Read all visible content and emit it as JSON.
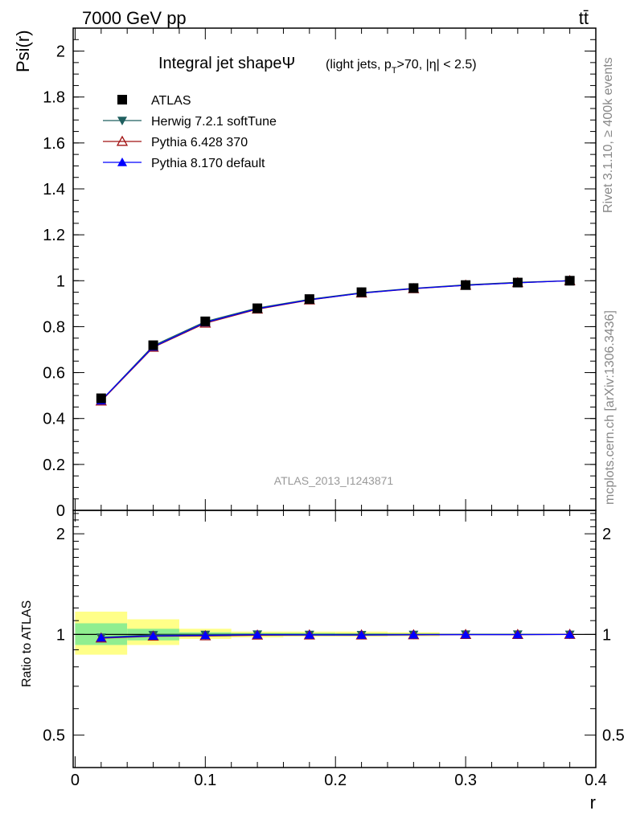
{
  "header": {
    "beam": "7000 GeV pp",
    "process": "tt̄",
    "analysis": "ATLAS_2013_I1243871",
    "side_top": "Rivet 3.1.10, ≥ 400k events",
    "side_bottom": "mcplots.cern.ch [arXiv:1306.3436]"
  },
  "chart_data": [
    {
      "type": "line",
      "title": "Integral jet shapeΨ",
      "subtitle": "(light jets, p_T>70, |η| < 2.5)",
      "ylabel": "Psi(r)",
      "xlabel": "",
      "xlim": [
        -0.0015,
        0.4
      ],
      "ylim": [
        0,
        2.1
      ],
      "yticks": [
        0,
        0.2,
        0.4,
        0.6,
        0.8,
        1,
        1.2,
        1.4,
        1.6,
        1.8,
        2
      ],
      "ytick_labels": [
        "0",
        "0.2",
        "0.4",
        "0.6",
        "0.8",
        "1",
        "1.2",
        "1.4",
        "1.6",
        "1.8",
        "2"
      ],
      "legend_position": "top-left",
      "x": [
        0.02,
        0.06,
        0.1,
        0.14,
        0.18,
        0.22,
        0.26,
        0.3,
        0.34,
        0.38
      ],
      "series": [
        {
          "name": "ATLAS",
          "marker": "square",
          "color": "#000000",
          "values": [
            0.488,
            0.719,
            0.823,
            0.88,
            0.92,
            0.95,
            0.968,
            0.981,
            0.992,
            1.0
          ]
        },
        {
          "name": "Herwig 7.2.1 softTune",
          "marker": "triangle-down",
          "color": "#1f5f5f",
          "values": [
            0.478,
            0.717,
            0.822,
            0.881,
            0.919,
            0.948,
            0.967,
            0.982,
            0.993,
            1.0
          ]
        },
        {
          "name": "Pythia 6.428 370",
          "marker": "triangle-up-open",
          "color": "#a01010",
          "values": [
            0.476,
            0.71,
            0.815,
            0.876,
            0.916,
            0.946,
            0.965,
            0.98,
            0.991,
            1.0
          ]
        },
        {
          "name": "Pythia 8.170 default",
          "marker": "triangle-up",
          "color": "#0000ff",
          "values": [
            0.478,
            0.712,
            0.818,
            0.878,
            0.917,
            0.946,
            0.966,
            0.98,
            0.991,
            1.0
          ]
        }
      ]
    },
    {
      "type": "line",
      "ylabel": "Ratio to ATLAS",
      "xlabel": "r",
      "xlim": [
        -0.0015,
        0.4
      ],
      "ylim": [
        0.4,
        2.35
      ],
      "y_scale": "log",
      "yticks": [
        0.5,
        1,
        2
      ],
      "ytick_labels": [
        "0.5",
        "1",
        "2"
      ],
      "xticks": [
        0,
        0.1,
        0.2,
        0.3,
        0.4
      ],
      "xtick_labels": [
        "0",
        "0.1",
        "0.2",
        "0.3",
        "0.4"
      ],
      "x": [
        0.02,
        0.06,
        0.1,
        0.14,
        0.18,
        0.22,
        0.26,
        0.3,
        0.34,
        0.38
      ],
      "uncertainty_bands": {
        "bin_edges": [
          0,
          0.04,
          0.08,
          0.12,
          0.16,
          0.2,
          0.24,
          0.28,
          0.32,
          0.36,
          0.4
        ],
        "inner_color": "#90ee90",
        "outer_color": "#ffff88",
        "inner_range": [
          [
            0.93,
            1.08
          ],
          [
            0.96,
            1.04
          ],
          [
            0.985,
            1.015
          ],
          [
            0.99,
            1.01
          ],
          [
            0.992,
            1.01
          ],
          [
            0.993,
            1.008
          ],
          [
            0.995,
            1.006
          ],
          [
            0.998,
            1.003
          ],
          [
            0.999,
            1.002
          ],
          [
            1.0,
            1.0
          ]
        ],
        "outer_range": [
          [
            0.87,
            1.17
          ],
          [
            0.93,
            1.11
          ],
          [
            0.97,
            1.04
          ],
          [
            0.98,
            1.02
          ],
          [
            0.985,
            1.02
          ],
          [
            0.985,
            1.02
          ],
          [
            0.988,
            1.015
          ],
          [
            0.998,
            1.003
          ],
          [
            0.999,
            1.002
          ],
          [
            1.0,
            1.0
          ]
        ]
      },
      "series": [
        {
          "name": "ATLAS",
          "marker": "none",
          "color": "#000000",
          "values": [
            1,
            1,
            1,
            1,
            1,
            1,
            1,
            1,
            1,
            1
          ]
        },
        {
          "name": "Herwig 7.2.1 softTune",
          "marker": "triangle-down",
          "color": "#1f5f5f",
          "values": [
            0.98,
            0.997,
            0.999,
            1.001,
            0.999,
            0.998,
            0.999,
            1.001,
            1.001,
            1.0
          ]
        },
        {
          "name": "Pythia 6.428 370",
          "marker": "triangle-up-open",
          "color": "#a01010",
          "values": [
            0.975,
            0.988,
            0.99,
            0.995,
            0.996,
            0.996,
            0.997,
            0.999,
            0.999,
            1.0
          ]
        },
        {
          "name": "Pythia 8.170 default",
          "marker": "triangle-up",
          "color": "#0000ff",
          "values": [
            0.978,
            0.99,
            0.994,
            0.998,
            0.997,
            0.996,
            0.998,
            0.999,
            0.999,
            1.0
          ]
        }
      ]
    }
  ]
}
